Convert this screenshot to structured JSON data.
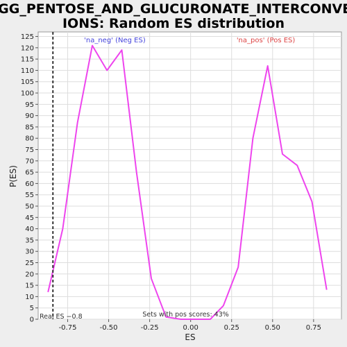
{
  "chart_data": {
    "type": "line",
    "title_line1": "KEGG_PENTOSE_AND_GLUCURONATE_INTERCONVERS",
    "title_line2": "IONS: Random ES distribution",
    "xlabel": "ES",
    "ylabel": "P(ES)",
    "xlim": [
      -0.93,
      0.92
    ],
    "ylim": [
      0,
      127
    ],
    "xticks": [
      -0.75,
      -0.5,
      -0.25,
      0.0,
      0.25,
      0.5,
      0.75
    ],
    "xtick_labels": [
      "-0.75",
      "-0.50",
      "-0.25",
      "0.00",
      "0.25",
      "0.50",
      "0.75"
    ],
    "yticks": [
      0,
      5,
      10,
      15,
      20,
      25,
      30,
      35,
      40,
      45,
      50,
      55,
      60,
      65,
      70,
      75,
      80,
      85,
      90,
      95,
      100,
      105,
      110,
      115,
      120,
      125
    ],
    "grid": true,
    "series": [
      {
        "color": "#ee44ee",
        "x": [
          -0.87,
          -0.78,
          -0.69,
          -0.6,
          -0.51,
          -0.42,
          -0.33,
          -0.24,
          -0.15,
          -0.06,
          0.03,
          0.12,
          0.2,
          0.29,
          0.38,
          0.47,
          0.56,
          0.65,
          0.74,
          0.83
        ],
        "y": [
          12,
          40,
          87,
          121,
          110,
          119,
          65,
          18,
          1,
          0,
          0,
          0,
          6,
          23,
          80,
          112,
          73,
          68,
          52,
          13
        ]
      }
    ],
    "real_es": -0.84,
    "real_es_label": "Real ES −0.8",
    "neg_label": "'na_neg' (Neg ES)",
    "pos_label": "'na_pos' (Pos ES)",
    "pos_scores_label": "Sets with pos scores: 43%",
    "colors": {
      "line": "#ee44ee",
      "neg_label": "#4444dd",
      "pos_label": "#dd4444",
      "plot_bg": "#ffffff",
      "grid": "#dddddd",
      "page_bg": "#eeeeee"
    }
  }
}
